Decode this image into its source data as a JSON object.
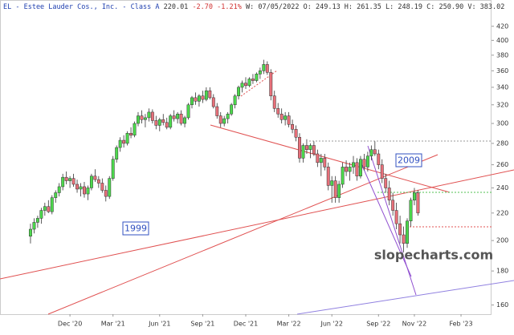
{
  "header": {
    "title": "EL - Estee Lauder Cos., Inc. - Class A",
    "last": "220.01",
    "change": "-2.70 -1.21%",
    "info": "W: 07/05/2022 O: 249.13 H: 261.35 L: 248.19 C: 250.90 V: 383.02"
  },
  "chart_data": {
    "type": "candlestick",
    "log_scale": true,
    "up_color": "#4cd94c",
    "down_color": "#e8707a",
    "ylim": [
      155,
      460
    ],
    "yticks": [
      160,
      180,
      200,
      220,
      240,
      260,
      280,
      300,
      320,
      340,
      360,
      380,
      400,
      420
    ],
    "categories": [
      null,
      null,
      null,
      null,
      null,
      null,
      null,
      null,
      null,
      null,
      null,
      null,
      null,
      null,
      null,
      null,
      null,
      null,
      null,
      "Dec '20",
      null,
      null,
      null,
      null,
      null,
      null,
      null,
      null,
      null,
      null,
      null,
      "Mar '21",
      null,
      null,
      null,
      null,
      null,
      null,
      null,
      null,
      null,
      null,
      null,
      null,
      "Jun '21",
      null,
      null,
      null,
      null,
      null,
      null,
      null,
      null,
      null,
      null,
      null,
      "Sep '21",
      null,
      null,
      null,
      null,
      null,
      null,
      null,
      null,
      null,
      null,
      null,
      "Dec '21",
      null,
      null,
      null,
      null,
      null,
      null,
      null,
      null,
      null,
      null,
      null,
      "Mar '22",
      null,
      null,
      null,
      null,
      null,
      null,
      null,
      null,
      null,
      null,
      null,
      "Jun '22",
      null,
      null,
      null,
      null,
      null,
      null,
      null,
      null,
      null,
      null,
      null,
      null,
      "Sep '22",
      null,
      null,
      null,
      null,
      null,
      null,
      null,
      null,
      null,
      "Nov '22",
      null,
      null,
      null,
      null,
      null,
      null,
      null,
      null,
      null,
      null,
      null,
      null,
      "Feb '23",
      null,
      null,
      null,
      null,
      null,
      null,
      null,
      null
    ],
    "ohlc": [
      null,
      null,
      null,
      null,
      null,
      null,
      null,
      null,
      [
        203,
        212,
        198,
        208
      ],
      [
        208,
        216,
        205,
        213
      ],
      [
        213,
        218,
        209,
        216
      ],
      [
        216,
        224,
        212,
        222
      ],
      [
        222,
        228,
        218,
        225
      ],
      [
        225,
        230,
        220,
        221
      ],
      [
        221,
        234,
        219,
        232
      ],
      [
        232,
        238,
        228,
        236
      ],
      [
        236,
        244,
        233,
        241
      ],
      [
        241,
        252,
        238,
        249
      ],
      [
        249,
        254,
        243,
        246
      ],
      [
        246,
        250,
        240,
        248
      ],
      [
        248,
        252,
        241,
        243
      ],
      [
        243,
        247,
        236,
        239
      ],
      [
        239,
        244,
        233,
        241
      ],
      [
        241,
        245,
        232,
        235
      ],
      [
        235,
        242,
        230,
        240
      ],
      [
        240,
        252,
        238,
        250
      ],
      [
        250,
        256,
        245,
        247
      ],
      [
        247,
        250,
        240,
        244
      ],
      [
        244,
        248,
        236,
        238
      ],
      [
        238,
        242,
        229,
        233
      ],
      [
        233,
        250,
        231,
        248
      ],
      [
        248,
        268,
        246,
        265
      ],
      [
        265,
        278,
        262,
        276
      ],
      [
        276,
        286,
        272,
        283
      ],
      [
        283,
        288,
        276,
        280
      ],
      [
        280,
        292,
        278,
        290
      ],
      [
        290,
        296,
        285,
        288
      ],
      [
        288,
        302,
        286,
        300
      ],
      [
        300,
        312,
        297,
        308
      ],
      [
        308,
        314,
        300,
        304
      ],
      [
        304,
        310,
        296,
        306
      ],
      [
        306,
        316,
        302,
        312
      ],
      [
        312,
        315,
        300,
        303
      ],
      [
        303,
        308,
        294,
        298
      ],
      [
        298,
        306,
        292,
        304
      ],
      [
        304,
        310,
        298,
        301
      ],
      [
        301,
        306,
        294,
        296
      ],
      [
        296,
        310,
        294,
        308
      ],
      [
        308,
        314,
        302,
        305
      ],
      [
        305,
        312,
        300,
        310
      ],
      [
        310,
        314,
        298,
        300
      ],
      [
        300,
        308,
        296,
        306
      ],
      [
        306,
        322,
        304,
        320
      ],
      [
        320,
        330,
        316,
        328
      ],
      [
        328,
        334,
        320,
        324
      ],
      [
        324,
        332,
        318,
        330
      ],
      [
        330,
        336,
        322,
        326
      ],
      [
        326,
        340,
        324,
        336
      ],
      [
        336,
        340,
        326,
        328
      ],
      [
        328,
        332,
        316,
        318
      ],
      [
        318,
        322,
        305,
        308
      ],
      [
        308,
        312,
        296,
        300
      ],
      [
        300,
        308,
        297,
        305
      ],
      [
        305,
        312,
        300,
        310
      ],
      [
        310,
        322,
        308,
        320
      ],
      [
        320,
        332,
        316,
        330
      ],
      [
        330,
        342,
        326,
        340
      ],
      [
        340,
        348,
        334,
        345
      ],
      [
        345,
        352,
        338,
        342
      ],
      [
        342,
        352,
        340,
        350
      ],
      [
        350,
        356,
        344,
        348
      ],
      [
        348,
        358,
        346,
        356
      ],
      [
        356,
        364,
        350,
        360
      ],
      [
        360,
        374,
        356,
        368
      ],
      [
        368,
        372,
        355,
        358
      ],
      [
        358,
        362,
        325,
        330
      ],
      [
        330,
        336,
        312,
        316
      ],
      [
        316,
        322,
        306,
        310
      ],
      [
        310,
        316,
        300,
        304
      ],
      [
        304,
        312,
        298,
        308
      ],
      [
        308,
        312,
        296,
        299
      ],
      [
        299,
        304,
        290,
        294
      ],
      [
        294,
        298,
        282,
        286
      ],
      [
        286,
        290,
        262,
        266
      ],
      [
        266,
        280,
        262,
        278
      ],
      [
        278,
        284,
        270,
        274
      ],
      [
        274,
        280,
        266,
        278
      ],
      [
        278,
        282,
        268,
        270
      ],
      [
        270,
        274,
        258,
        262
      ],
      [
        262,
        270,
        250,
        266
      ],
      [
        266,
        270,
        255,
        258
      ],
      [
        258,
        262,
        238,
        242
      ],
      [
        242,
        250,
        228,
        246
      ],
      [
        246,
        250,
        228,
        232
      ],
      [
        232,
        246,
        228,
        243
      ],
      [
        243,
        262,
        240,
        258
      ],
      [
        258,
        264,
        250,
        254
      ],
      [
        254,
        262,
        246,
        258
      ],
      [
        258,
        268,
        252,
        262
      ],
      [
        262,
        266,
        246,
        250
      ],
      [
        250,
        268,
        248,
        265
      ],
      [
        265,
        270,
        255,
        258
      ],
      [
        258,
        272,
        254,
        268
      ],
      [
        268,
        278,
        264,
        274
      ],
      [
        274,
        282,
        268,
        270
      ],
      [
        270,
        274,
        256,
        260
      ],
      [
        260,
        265,
        244,
        248
      ],
      [
        248,
        252,
        236,
        240
      ],
      [
        240,
        246,
        226,
        230
      ],
      [
        230,
        236,
        218,
        222
      ],
      [
        222,
        228,
        208,
        212
      ],
      [
        212,
        218,
        198,
        204
      ],
      [
        204,
        210,
        192,
        198
      ],
      [
        198,
        216,
        195,
        214
      ],
      [
        214,
        232,
        210,
        230
      ],
      [
        230,
        240,
        226,
        236
      ],
      [
        236,
        238,
        218,
        220
      ],
      null,
      null,
      null,
      null,
      null,
      null,
      null,
      null,
      null,
      null,
      null,
      null,
      null,
      null,
      null,
      null,
      null,
      null,
      null,
      null
    ],
    "annotations": [
      "1999",
      "2009",
      "slopecharts.com"
    ]
  }
}
